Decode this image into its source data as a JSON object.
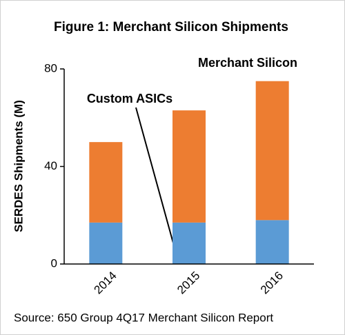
{
  "chart_data": {
    "type": "stacked_bar",
    "title": "Figure 1: Merchant Silicon Shipments",
    "y_label": "SERDES Shipments (M)",
    "source": "Source: 650 Group 4Q17 Merchant Silicon Report",
    "categories": [
      "2014",
      "2015",
      "2016"
    ],
    "series": [
      {
        "name": "Custom ASICs",
        "color": "#5b9bd5",
        "values": [
          17,
          17,
          18
        ]
      },
      {
        "name": "Merchant Silicon",
        "color": "#ed7d31",
        "values": [
          33,
          46,
          57
        ]
      }
    ],
    "ylim": [
      0,
      80
    ],
    "yticks": [
      0,
      40,
      80
    ]
  }
}
